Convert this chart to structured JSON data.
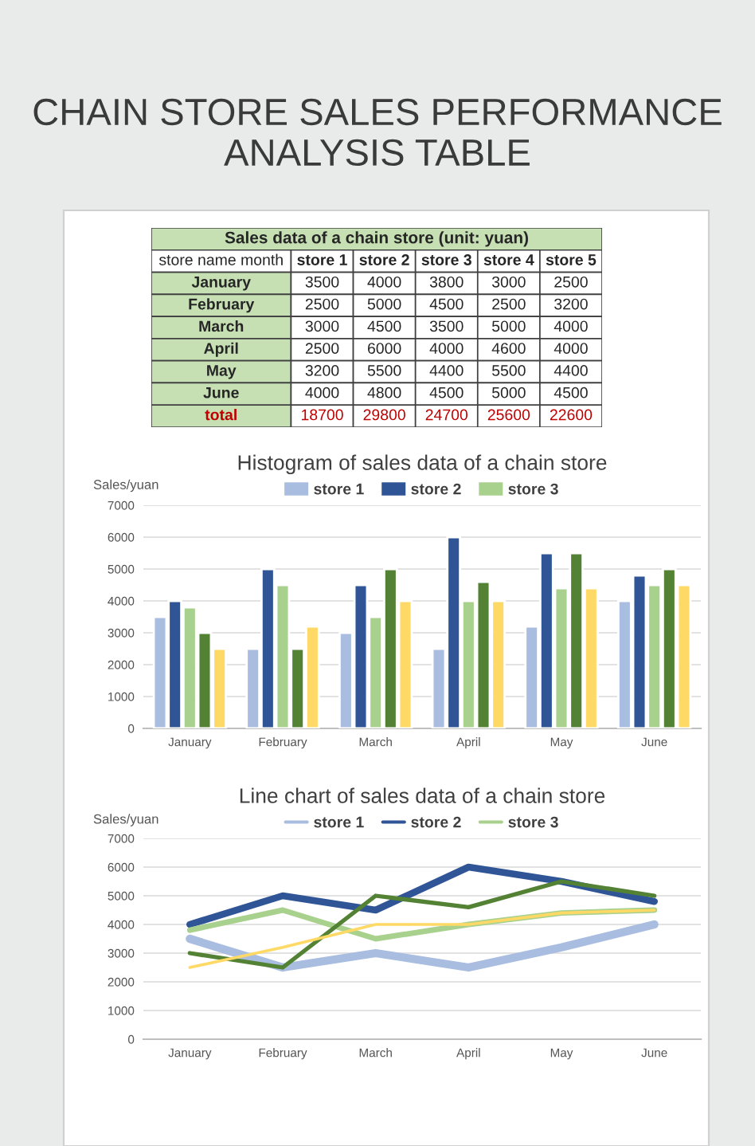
{
  "chart_data": [
    {
      "type": "other",
      "title": "CHAIN STORE SALES PERFORMANCE ANALYSIS TABLE",
      "subtitle": "Sales data of a chain store (unit: yuan)",
      "xlabel": "store name month",
      "categories": [
        "January",
        "February",
        "March",
        "April",
        "May",
        "June"
      ],
      "series": [
        {
          "name": "store 1",
          "values": [
            3500,
            2500,
            3000,
            2500,
            3200,
            4000
          ]
        },
        {
          "name": "store 2",
          "values": [
            4000,
            5000,
            4500,
            6000,
            5500,
            4800
          ]
        },
        {
          "name": "store 3",
          "values": [
            3800,
            4500,
            3500,
            4000,
            4400,
            4500
          ]
        },
        {
          "name": "store 4",
          "values": [
            3000,
            2500,
            5000,
            4600,
            5500,
            5000
          ]
        },
        {
          "name": "store 5",
          "values": [
            2500,
            3200,
            4000,
            4000,
            4400,
            4500
          ]
        }
      ],
      "totals": [
        "18700",
        "29800",
        "24700",
        "25600",
        "22600"
      ],
      "annotations": [
        "total"
      ],
      "data_labels": true,
      "legend": "top"
    },
    {
      "type": "bar",
      "title": "Histogram of sales data of a chain store",
      "ylabel": "Sales/yuan",
      "categories": [
        "January",
        "February",
        "March",
        "April",
        "May",
        "June"
      ],
      "series": [
        {
          "name": "store 1",
          "color": "#a9bde0",
          "values": [
            3500,
            2500,
            3000,
            2500,
            3200,
            4000
          ]
        },
        {
          "name": "store 2",
          "color": "#2f5597",
          "values": [
            4000,
            5000,
            4500,
            6000,
            5500,
            4800
          ]
        },
        {
          "name": "store 3",
          "color": "#a9d18e",
          "values": [
            3800,
            4500,
            3500,
            4000,
            4400,
            4500
          ]
        },
        {
          "color": "#548235",
          "values": [
            3000,
            2500,
            5000,
            4600,
            5500,
            5000
          ]
        },
        {
          "color": "#ffd966",
          "values": [
            2500,
            3200,
            4000,
            4000,
            4400,
            4500
          ]
        }
      ],
      "ylim": [
        0,
        7000
      ],
      "yticks": [
        0,
        1000,
        2000,
        3000,
        4000,
        5000,
        6000,
        7000
      ],
      "grid": "y",
      "legend": "top"
    },
    {
      "type": "line",
      "title": "Line chart of sales data of a chain store",
      "ylabel": "Sales/yuan",
      "categories": [
        "January",
        "February",
        "March",
        "April",
        "May",
        "June"
      ],
      "series": [
        {
          "name": "store 1",
          "color": "#a9bde0",
          "values": [
            3500,
            2500,
            3000,
            2500,
            3200,
            4000
          ]
        },
        {
          "name": "store 2",
          "color": "#2f5597",
          "values": [
            4000,
            5000,
            4500,
            6000,
            5500,
            4800
          ]
        },
        {
          "name": "store 3",
          "color": "#a9d18e",
          "values": [
            3800,
            4500,
            3500,
            4000,
            4400,
            4500
          ]
        },
        {
          "color": "#548235",
          "values": [
            3000,
            2500,
            5000,
            4600,
            5500,
            5000
          ]
        },
        {
          "color": "#ffd966",
          "values": [
            2500,
            3200,
            4000,
            4000,
            4400,
            4500
          ]
        }
      ],
      "ylim": [
        0,
        7000
      ],
      "yticks": [
        0,
        1000,
        2000,
        3000,
        4000,
        5000,
        6000,
        7000
      ],
      "grid": "y",
      "legend": "top",
      "marker": "none",
      "line_style": "solid"
    }
  ]
}
